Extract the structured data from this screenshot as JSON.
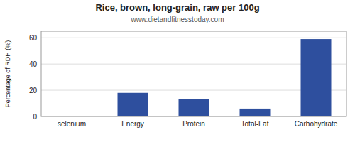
{
  "chart_data": {
    "type": "bar",
    "title": "Rice, brown, long-grain, raw per 100g",
    "subtitle": "www.dietandfitnesstoday.com",
    "categories": [
      "selenium",
      "Energy",
      "Protein",
      "Total-Fat",
      "Carbohydrate"
    ],
    "values": [
      0.3,
      18,
      13,
      6,
      59
    ],
    "color": "#2e4f9e",
    "ylabel": "Percentage of RDH (%)",
    "ylim": [
      0,
      65
    ],
    "yticks": [
      0,
      20,
      40,
      60
    ],
    "grid": true
  }
}
